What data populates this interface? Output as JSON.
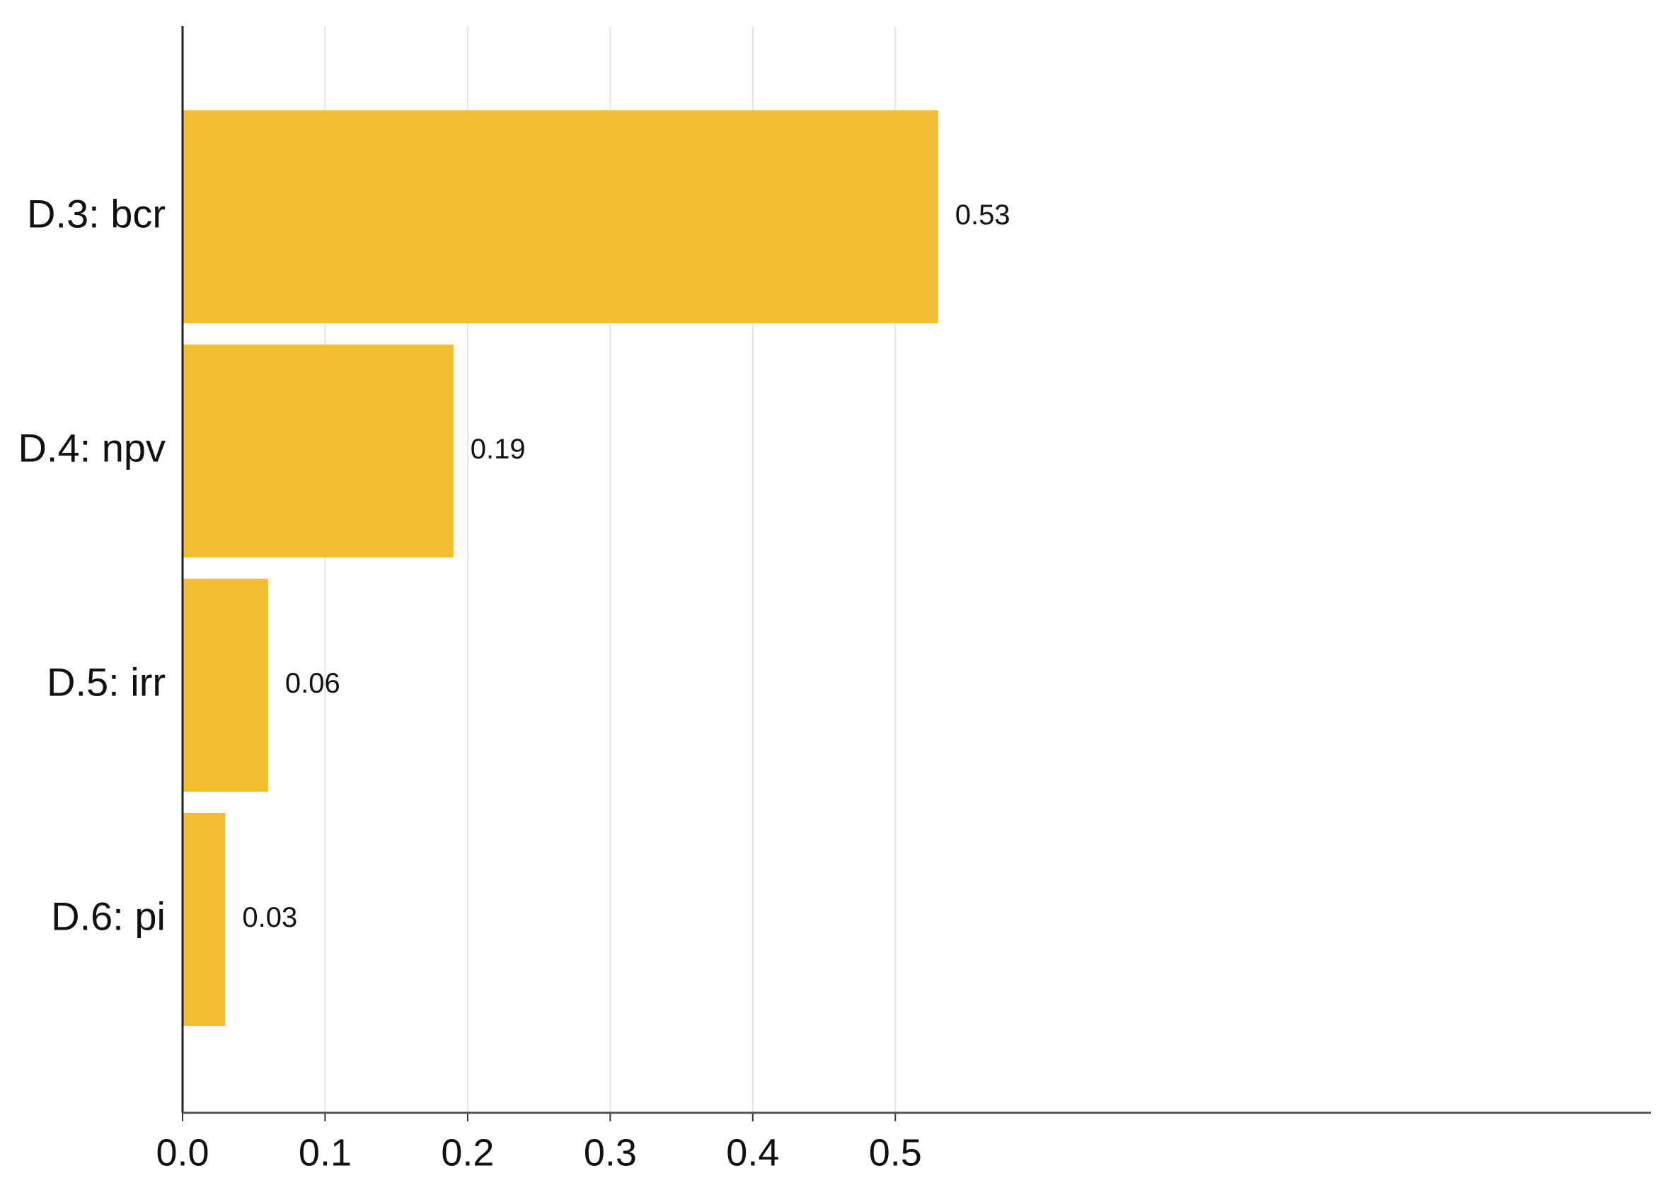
{
  "chart_data": {
    "type": "barh",
    "categories": [
      "D.3: bcr",
      "D.4: npv",
      "D.5: irr",
      "D.6: pi"
    ],
    "values": [
      0.53,
      0.19,
      0.06,
      0.03
    ],
    "color": "#f2bc33",
    "xlim": [
      0,
      1.03
    ],
    "xticks": [
      {
        "value": 0,
        "label": "0.0"
      },
      0.1,
      0.2,
      0.3,
      0.4,
      0.5
    ],
    "grid": true
  }
}
